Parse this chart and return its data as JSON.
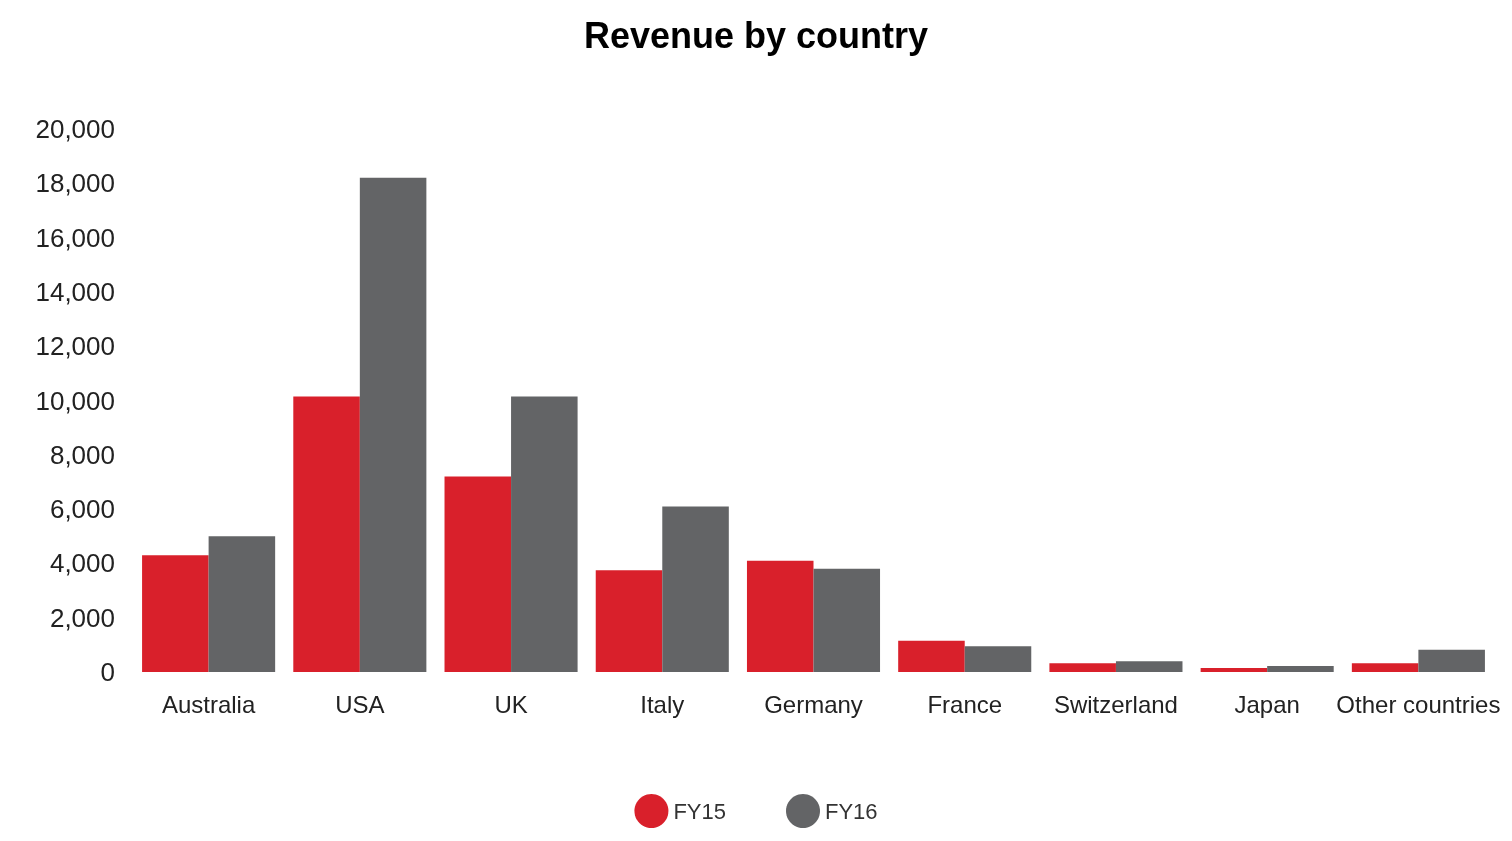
{
  "chart_data": {
    "type": "bar",
    "title": "Revenue by country",
    "categories": [
      "Australia",
      "USA",
      "UK",
      "Italy",
      "Germany",
      "France",
      "Switzerland",
      "Japan",
      "Other countries"
    ],
    "series": [
      {
        "name": "FY15",
        "color": "#d9202b",
        "values": [
          4300,
          10150,
          7200,
          3750,
          4100,
          1150,
          320,
          150,
          320
        ]
      },
      {
        "name": "FY16",
        "color": "#636466",
        "values": [
          5000,
          18200,
          10150,
          6100,
          3800,
          950,
          400,
          220,
          820
        ]
      }
    ],
    "ylim": [
      0,
      20000
    ],
    "yticks": [
      0,
      {
        "value": 2000,
        "label": "2,000"
      },
      {
        "value": 4000,
        "label": "4,000"
      },
      {
        "value": 6000,
        "label": "6,000"
      },
      {
        "value": 8000,
        "label": "8,000"
      },
      {
        "value": 10000,
        "label": "10,000"
      },
      {
        "value": 12000,
        "label": "12,000"
      },
      {
        "value": 14000,
        "label": "14,000"
      },
      {
        "value": 16000,
        "label": "16,000"
      },
      {
        "value": 18000,
        "label": "18,000"
      },
      {
        "value": 20000,
        "label": "20,000"
      }
    ],
    "grid": false,
    "legend": "bottom"
  }
}
